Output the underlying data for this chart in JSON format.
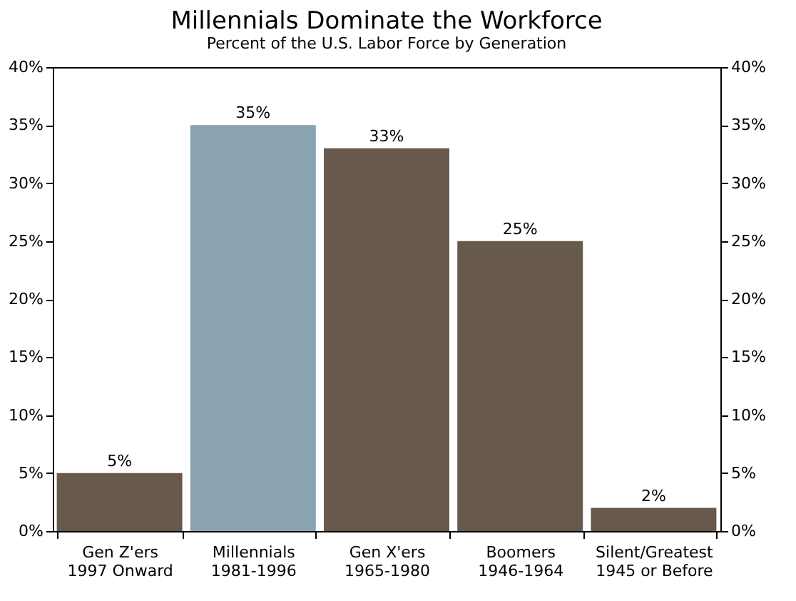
{
  "chart_data": {
    "type": "bar",
    "title": "Millennials Dominate the Workforce",
    "subtitle": "Percent of the U.S. Labor Force by Generation",
    "categories": [
      "Gen Z'ers\n1997 Onward",
      "Millennials\n1981-1996",
      "Gen X'ers\n1965-1980",
      "Boomers\n1946-1964",
      "Silent/Greatest\n1945 or Before"
    ],
    "values": [
      5,
      35,
      33,
      25,
      2
    ],
    "colors": [
      "#67594c",
      "#8aa3b1",
      "#67594c",
      "#67594c",
      "#67594c"
    ],
    "value_labels": [
      "5%",
      "35%",
      "33%",
      "25%",
      "2%"
    ],
    "ylim": [
      0,
      40
    ],
    "yticks": [
      {
        "value": 0,
        "label": "0%"
      },
      {
        "value": 5,
        "label": "5%"
      },
      {
        "value": 10,
        "label": "10%"
      },
      {
        "value": 15,
        "label": "15%"
      },
      {
        "value": 20,
        "label": "20%"
      },
      {
        "value": 25,
        "label": "25%"
      },
      {
        "value": 30,
        "label": "30%"
      },
      {
        "value": 35,
        "label": "35%"
      },
      {
        "value": 40,
        "label": "40%"
      }
    ],
    "y2lim": [
      0,
      40
    ],
    "y2ticks": [
      {
        "value": 0,
        "label": "0%"
      },
      {
        "value": 5,
        "label": "5%"
      },
      {
        "value": 10,
        "label": "10%"
      },
      {
        "value": 15,
        "label": "15%"
      },
      {
        "value": 20,
        "label": "20%"
      },
      {
        "value": 25,
        "label": "25%"
      },
      {
        "value": 30,
        "label": "30%"
      },
      {
        "value": 35,
        "label": "35%"
      },
      {
        "value": 40,
        "label": "40%"
      }
    ],
    "grid": false
  }
}
